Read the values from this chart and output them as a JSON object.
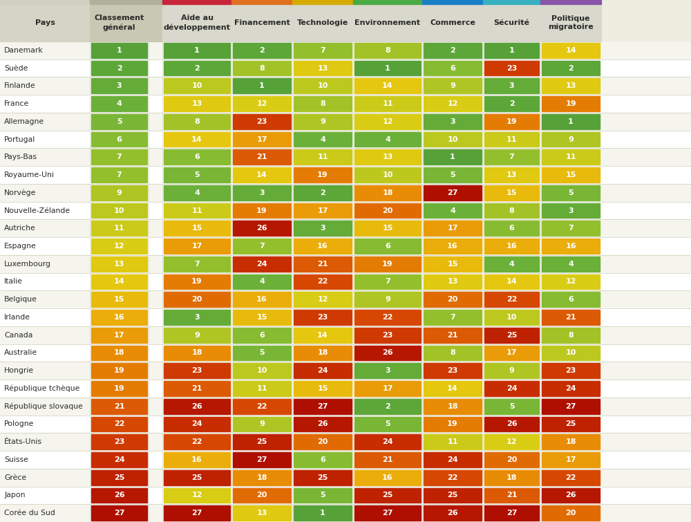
{
  "countries": [
    "Danemark",
    "Suède",
    "Finlande",
    "France",
    "Allemagne",
    "Portugal",
    "Pays-Bas",
    "Royaume-Uni",
    "Norvège",
    "Nouvelle-Zélande",
    "Autriche",
    "Espagne",
    "Luxembourg",
    "Italie",
    "Belgique",
    "Irlande",
    "Canada",
    "Australie",
    "Hongrie",
    "République tchèque",
    "République slovaque",
    "Pologne",
    "États-Unis",
    "Suisse",
    "Grèce",
    "Japon",
    "Corée du Sud"
  ],
  "col_headers": [
    "Pays",
    "Classement\ngénéral",
    "",
    "Aide au\ndéveloppement",
    "Financement",
    "Technologie",
    "Environnement",
    "Commerce",
    "Sécurité",
    "Politique\nmigratoire"
  ],
  "header_colors": [
    "#d0cfc0",
    "#b0b09a",
    "#b0b09a",
    "#c8253a",
    "#e07020",
    "#d4aa00",
    "#4aaa44",
    "#1a7ec8",
    "#38b0c0",
    "#8855aa"
  ],
  "header_bar_colors": [
    "#d0cfc0",
    "#b0b09a",
    "#b0b09a",
    "#c8253a",
    "#e07020",
    "#d4aa00",
    "#4aaa44",
    "#1a7ec8",
    "#38b0c0",
    "#8855aa"
  ],
  "data": [
    [
      1,
      1,
      2,
      7,
      8,
      2,
      1,
      14
    ],
    [
      2,
      2,
      8,
      13,
      1,
      6,
      23,
      2
    ],
    [
      3,
      10,
      1,
      10,
      14,
      9,
      3,
      13
    ],
    [
      4,
      13,
      12,
      8,
      11,
      12,
      2,
      19
    ],
    [
      5,
      8,
      23,
      9,
      12,
      3,
      19,
      1
    ],
    [
      6,
      14,
      17,
      4,
      4,
      10,
      11,
      9
    ],
    [
      7,
      6,
      21,
      11,
      13,
      1,
      7,
      11
    ],
    [
      7,
      5,
      14,
      19,
      10,
      5,
      13,
      15
    ],
    [
      9,
      4,
      3,
      2,
      18,
      27,
      15,
      5
    ],
    [
      10,
      11,
      19,
      17,
      20,
      4,
      8,
      3
    ],
    [
      11,
      15,
      26,
      3,
      15,
      17,
      6,
      7
    ],
    [
      12,
      17,
      7,
      16,
      6,
      16,
      16,
      16
    ],
    [
      13,
      7,
      24,
      21,
      19,
      15,
      4,
      4
    ],
    [
      14,
      19,
      4,
      22,
      7,
      13,
      14,
      12
    ],
    [
      15,
      20,
      16,
      12,
      9,
      20,
      22,
      6
    ],
    [
      16,
      3,
      15,
      23,
      22,
      7,
      10,
      21
    ],
    [
      17,
      9,
      6,
      14,
      23,
      21,
      25,
      8
    ],
    [
      18,
      18,
      5,
      18,
      26,
      8,
      17,
      10
    ],
    [
      19,
      23,
      10,
      24,
      3,
      23,
      9,
      23
    ],
    [
      19,
      21,
      11,
      15,
      17,
      14,
      24,
      24
    ],
    [
      21,
      26,
      22,
      27,
      2,
      18,
      5,
      27
    ],
    [
      22,
      24,
      9,
      26,
      5,
      19,
      26,
      25
    ],
    [
      23,
      22,
      25,
      20,
      24,
      11,
      12,
      18
    ],
    [
      24,
      16,
      27,
      6,
      21,
      24,
      20,
      17
    ],
    [
      25,
      25,
      18,
      25,
      16,
      22,
      18,
      22
    ],
    [
      26,
      12,
      20,
      5,
      25,
      25,
      21,
      26
    ],
    [
      27,
      27,
      13,
      1,
      27,
      26,
      27,
      20
    ]
  ],
  "figsize": [
    10.0,
    7.55
  ],
  "dpi": 100,
  "bg_color": "#eeeee0",
  "row_bg_colors": [
    "#f5f5ee",
    "#ffffff"
  ],
  "country_col_bg": "#f0f0e8",
  "separator_color": "#ccccb8",
  "text_dark": "#2a2a2a",
  "top_bar_height": 6
}
